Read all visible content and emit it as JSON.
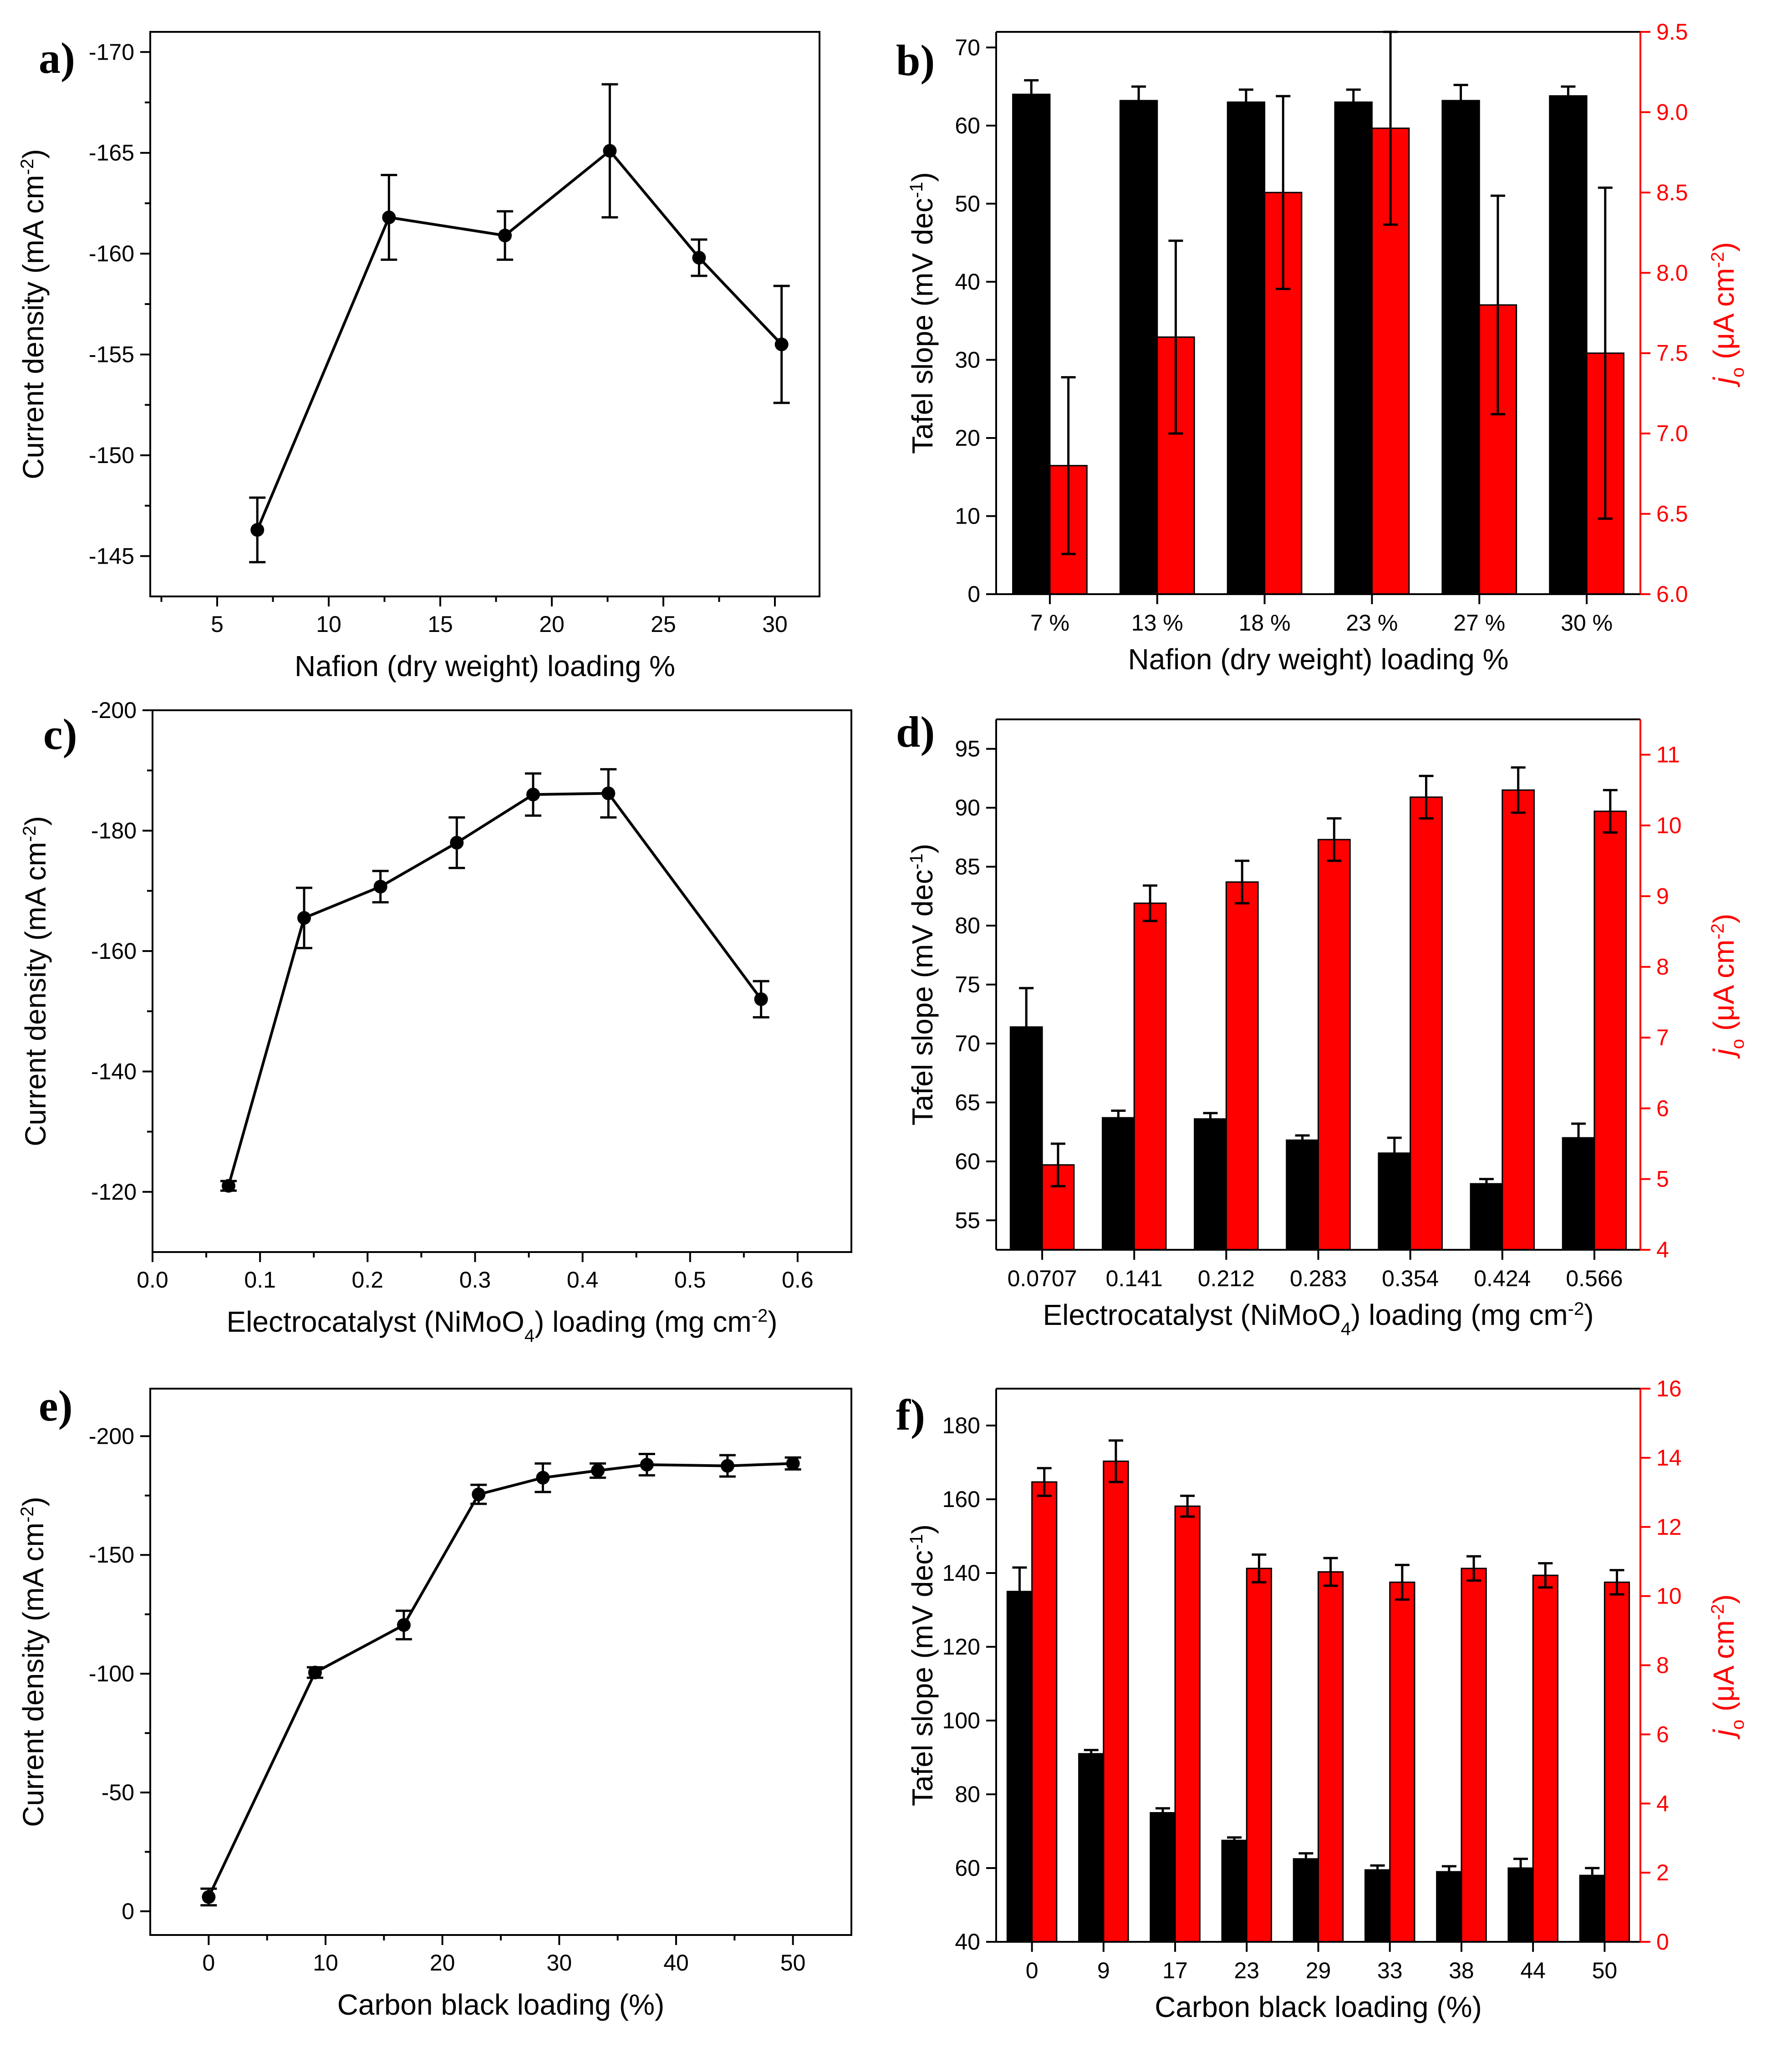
{
  "colors": {
    "black_bar": "#000000",
    "red_bar": "#ff0000",
    "red_axis": "#ff0000"
  },
  "chart_data": [
    {
      "id": "a",
      "panel_label": "a)",
      "type": "line",
      "xlabel": "Nafion (dry weight) loading %",
      "ylabel": "Current density (mA cm",
      "ylabel_sup": "-2",
      "ylabel_end": ")",
      "xlim": [
        2,
        32
      ],
      "ylim": [
        -143,
        -171
      ],
      "xticks": [
        5,
        10,
        15,
        20,
        25,
        30
      ],
      "xtick_labels": [
        "5",
        "10",
        "15",
        "20",
        "25",
        "30"
      ],
      "yticks": [
        -145,
        -150,
        -155,
        -160,
        -165,
        -170
      ],
      "ytick_labels": [
        "-145",
        "-150",
        "-155",
        "-160",
        "-165",
        "-170"
      ],
      "x": [
        6.8,
        12.7,
        17.9,
        22.6,
        26.6,
        30.3
      ],
      "y": [
        -146.3,
        -161.8,
        -160.9,
        -165.1,
        -159.8,
        -155.5
      ],
      "yerr": [
        1.6,
        2.1,
        1.2,
        3.3,
        0.9,
        2.9
      ]
    },
    {
      "id": "b",
      "panel_label": "b)",
      "type": "bar",
      "xlabel": "Nafion (dry weight) loading %",
      "ylabel": "Tafel slope (mV dec",
      "ylabel_sup": "-1",
      "ylabel_end": ")",
      "y2label_italic": "j",
      "y2label_sub": "o",
      "y2label_mid": " (μA cm",
      "y2label_sup": "-2",
      "y2label_end": ")",
      "categories": [
        "7 %",
        "13 %",
        "18 %",
        "23 %",
        "27 %",
        "30 %"
      ],
      "ylim": [
        0,
        72
      ],
      "y2lim": [
        6.0,
        9.5
      ],
      "yticks": [
        0,
        10,
        20,
        30,
        40,
        50,
        60,
        70
      ],
      "ytick_labels": [
        "0",
        "10",
        "20",
        "30",
        "40",
        "50",
        "60",
        "70"
      ],
      "y2ticks": [
        6.0,
        6.5,
        7.0,
        7.5,
        8.0,
        8.5,
        9.0,
        9.5
      ],
      "y2tick_labels": [
        "6.0",
        "6.5",
        "7.0",
        "7.5",
        "8.0",
        "8.5",
        "9.0",
        "9.5"
      ],
      "series": [
        {
          "name": "Tafel slope",
          "axis": "left",
          "values": [
            64,
            63.2,
            63,
            63,
            63.2,
            63.8
          ],
          "err": [
            1.8,
            1.8,
            1.6,
            1.6,
            2.0,
            1.2
          ]
        },
        {
          "name": "jo",
          "axis": "right",
          "values": [
            6.8,
            7.6,
            8.5,
            8.9,
            7.8,
            7.5
          ],
          "err": [
            0.55,
            0.6,
            0.6,
            0.6,
            0.68,
            1.03
          ]
        }
      ]
    },
    {
      "id": "c",
      "panel_label": "c)",
      "type": "line",
      "xlabel": "Electrocatalyst (NiMoO",
      "xlabel_sub": "4",
      "xlabel_end": ") loading (mg cm",
      "xlabel_sup": "-2",
      "xlabel_end2": ")",
      "ylabel": "Current density (mA cm",
      "ylabel_sup": "-2",
      "ylabel_end": ")",
      "xlim": [
        0.0,
        0.65
      ],
      "ylim": [
        -110,
        -200
      ],
      "xticks": [
        0.0,
        0.1,
        0.2,
        0.3,
        0.4,
        0.5,
        0.6
      ],
      "xtick_labels": [
        "0.0",
        "0.1",
        "0.2",
        "0.3",
        "0.4",
        "0.5",
        "0.6"
      ],
      "yticks": [
        -120,
        -140,
        -160,
        -180,
        -200
      ],
      "ytick_labels": [
        "-120",
        "-140",
        "-160",
        "-180",
        "-200"
      ],
      "x": [
        0.0707,
        0.141,
        0.212,
        0.283,
        0.354,
        0.424,
        0.566
      ],
      "y": [
        -121,
        -165.5,
        -170.7,
        -178,
        -186,
        -186.2,
        -152
      ],
      "yerr": [
        0.8,
        5,
        2.6,
        4.2,
        3.5,
        4,
        3
      ]
    },
    {
      "id": "d",
      "panel_label": "d)",
      "type": "bar",
      "xlabel": "Electrocatalyst (NiMoO",
      "xlabel_sub": "4",
      "xlabel_end": ") loading (mg cm",
      "xlabel_sup": "-2",
      "xlabel_end2": ")",
      "ylabel": "Tafel slope (mV dec",
      "ylabel_sup": "-1",
      "ylabel_end": ")",
      "y2label_italic": "j",
      "y2label_sub": "o",
      "y2label_mid": " (μA cm",
      "y2label_sup": "-2",
      "y2label_end": ")",
      "categories": [
        "0.0707",
        "0.141",
        "0.212",
        "0.283",
        "0.354",
        "0.424",
        "0.566"
      ],
      "ylim": [
        52.5,
        97.5
      ],
      "y2lim": [
        4,
        11.5
      ],
      "yticks": [
        55,
        60,
        65,
        70,
        75,
        80,
        85,
        90,
        95
      ],
      "ytick_labels": [
        "55",
        "60",
        "65",
        "70",
        "75",
        "80",
        "85",
        "90",
        "95"
      ],
      "y2ticks": [
        4,
        5,
        6,
        7,
        8,
        9,
        10,
        11
      ],
      "y2tick_labels": [
        "4",
        "5",
        "6",
        "7",
        "8",
        "9",
        "10",
        "11"
      ],
      "series": [
        {
          "name": "Tafel slope",
          "axis": "left",
          "values": [
            71.4,
            63.7,
            63.6,
            61.8,
            60.7,
            58.1,
            62.0
          ],
          "err": [
            3.3,
            0.6,
            0.5,
            0.4,
            1.3,
            0.4,
            1.2
          ]
        },
        {
          "name": "jo",
          "axis": "right",
          "values": [
            5.2,
            8.9,
            9.2,
            9.8,
            10.4,
            10.5,
            10.2
          ],
          "err": [
            0.3,
            0.25,
            0.3,
            0.3,
            0.3,
            0.32,
            0.3
          ]
        }
      ]
    },
    {
      "id": "e",
      "panel_label": "e)",
      "type": "line",
      "xlabel": "Carbon black loading (%)",
      "ylabel": "Current density (mA cm",
      "ylabel_sup": "-2",
      "ylabel_end": ")",
      "xlim": [
        -5,
        55
      ],
      "ylim": [
        10,
        -220
      ],
      "xticks": [
        0,
        10,
        20,
        30,
        40,
        50
      ],
      "xtick_labels": [
        "0",
        "10",
        "20",
        "30",
        "40",
        "50"
      ],
      "yticks": [
        0,
        -50,
        -100,
        -150,
        -200
      ],
      "ytick_labels": [
        "0",
        "-50",
        "-100",
        "-150",
        "-200"
      ],
      "x": [
        0,
        9.1,
        16.7,
        23.1,
        28.6,
        33.3,
        37.5,
        44.4,
        50
      ],
      "y": [
        -6,
        -100.5,
        -120.5,
        -175.5,
        -182.5,
        -185.5,
        -188,
        -187.5,
        -188.5
      ],
      "yerr": [
        3.5,
        2.2,
        6,
        4,
        6,
        3,
        4.5,
        4.5,
        2.5
      ]
    },
    {
      "id": "f",
      "panel_label": "f)",
      "type": "bar",
      "xlabel": "Carbon black loading (%)",
      "ylabel": "Tafel slope (mV dec",
      "ylabel_sup": "-1",
      "ylabel_end": ")",
      "y2label_italic": "j",
      "y2label_sub": "o",
      "y2label_mid": " (μA cm",
      "y2label_sup": "-2",
      "y2label_end": ")",
      "categories": [
        "0",
        "9",
        "17",
        "23",
        "29",
        "33",
        "38",
        "44",
        "50"
      ],
      "ylim": [
        40,
        190
      ],
      "y2lim": [
        0,
        16
      ],
      "yticks": [
        40,
        60,
        80,
        100,
        120,
        140,
        160,
        180
      ],
      "ytick_labels": [
        "40",
        "60",
        "80",
        "100",
        "120",
        "140",
        "160",
        "180"
      ],
      "y2ticks": [
        0,
        2,
        4,
        6,
        8,
        10,
        12,
        14,
        16
      ],
      "y2tick_labels": [
        "0",
        "2",
        "4",
        "6",
        "8",
        "10",
        "12",
        "14",
        "16"
      ],
      "series": [
        {
          "name": "Tafel slope",
          "axis": "left",
          "values": [
            135,
            91,
            75,
            67.5,
            62.5,
            59.5,
            59,
            60,
            58
          ],
          "err": [
            6.5,
            1,
            1.2,
            0.8,
            1.5,
            1.2,
            1.5,
            2.5,
            2
          ]
        },
        {
          "name": "jo",
          "axis": "right",
          "values": [
            13.3,
            13.9,
            12.6,
            10.8,
            10.7,
            10.4,
            10.8,
            10.6,
            10.4
          ],
          "err": [
            0.4,
            0.6,
            0.3,
            0.4,
            0.4,
            0.5,
            0.35,
            0.35,
            0.35
          ]
        }
      ]
    }
  ]
}
